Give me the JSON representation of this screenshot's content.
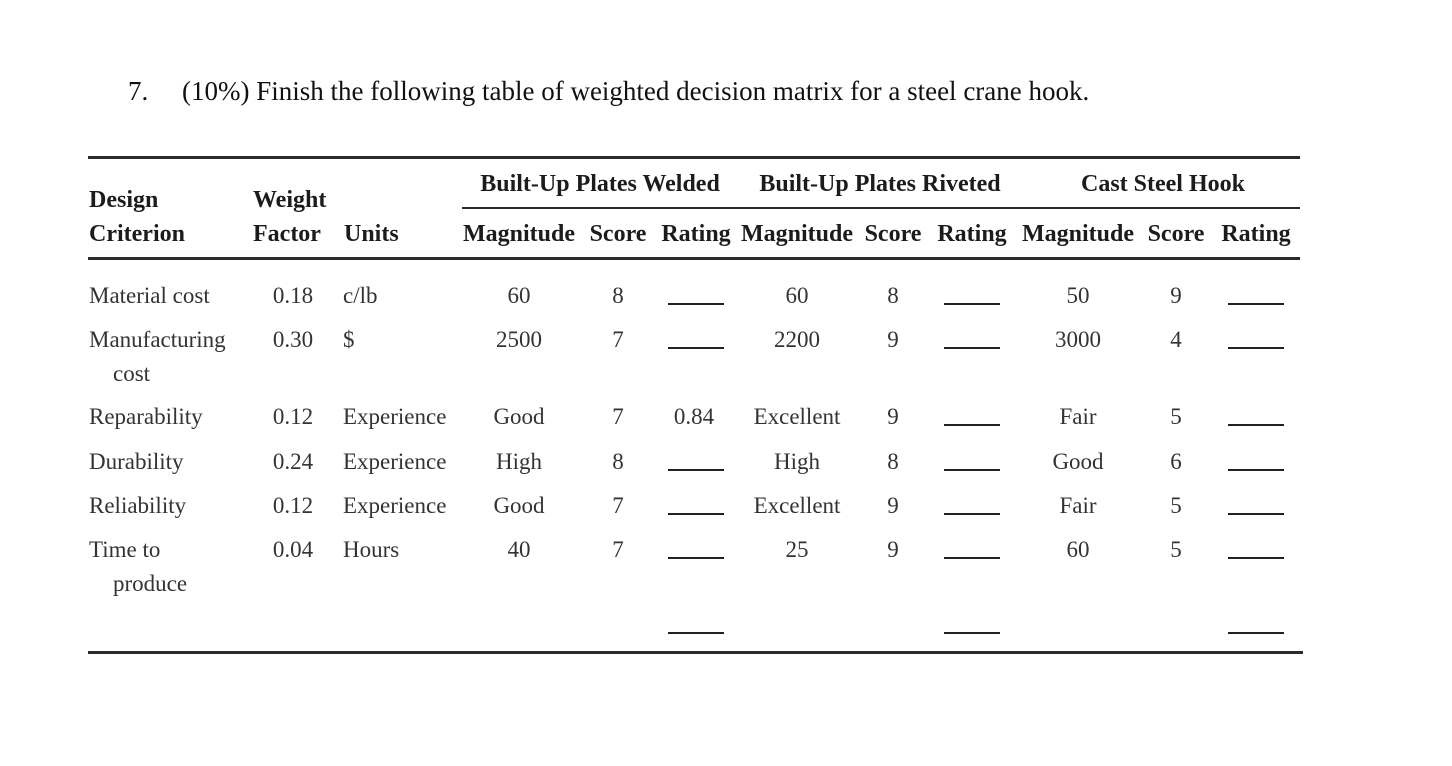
{
  "question": {
    "number": "7.",
    "text": "(10%) Finish the following table of weighted decision matrix for a steel crane hook."
  },
  "table": {
    "headers": {
      "design": "Design",
      "criterion": "Criterion",
      "weight": "Weight",
      "factor": "Factor",
      "units": "Units",
      "groups": [
        "Built-Up Plates Welded",
        "Built-Up Plates Riveted",
        "Cast Steel Hook"
      ],
      "magnitude": "Magnitude",
      "score": "Score",
      "rating": "Rating"
    },
    "rows": [
      {
        "criterion": [
          "Material cost"
        ],
        "weight": "0.18",
        "units": "c/lb",
        "welded": {
          "magnitude": "60",
          "score": "8",
          "rating": ""
        },
        "riveted": {
          "magnitude": "60",
          "score": "8",
          "rating": ""
        },
        "cast": {
          "magnitude": "50",
          "score": "9",
          "rating": ""
        }
      },
      {
        "criterion": [
          "Manufacturing",
          "cost"
        ],
        "weight": "0.30",
        "units": "$",
        "welded": {
          "magnitude": "2500",
          "score": "7",
          "rating": ""
        },
        "riveted": {
          "magnitude": "2200",
          "score": "9",
          "rating": ""
        },
        "cast": {
          "magnitude": "3000",
          "score": "4",
          "rating": ""
        }
      },
      {
        "criterion": [
          "Reparability"
        ],
        "weight": "0.12",
        "units": "Experience",
        "welded": {
          "magnitude": "Good",
          "score": "7",
          "rating": "0.84"
        },
        "riveted": {
          "magnitude": "Excellent",
          "score": "9",
          "rating": ""
        },
        "cast": {
          "magnitude": "Fair",
          "score": "5",
          "rating": ""
        }
      },
      {
        "criterion": [
          "Durability"
        ],
        "weight": "0.24",
        "units": "Experience",
        "welded": {
          "magnitude": "High",
          "score": "8",
          "rating": ""
        },
        "riveted": {
          "magnitude": "High",
          "score": "8",
          "rating": ""
        },
        "cast": {
          "magnitude": "Good",
          "score": "6",
          "rating": ""
        }
      },
      {
        "criterion": [
          "Reliability"
        ],
        "weight": "0.12",
        "units": "Experience",
        "welded": {
          "magnitude": "Good",
          "score": "7",
          "rating": ""
        },
        "riveted": {
          "magnitude": "Excellent",
          "score": "9",
          "rating": ""
        },
        "cast": {
          "magnitude": "Fair",
          "score": "5",
          "rating": ""
        }
      },
      {
        "criterion": [
          "Time to",
          "produce"
        ],
        "weight": "0.04",
        "units": "Hours",
        "welded": {
          "magnitude": "40",
          "score": "7",
          "rating": ""
        },
        "riveted": {
          "magnitude": "25",
          "score": "9",
          "rating": ""
        },
        "cast": {
          "magnitude": "60",
          "score": "5",
          "rating": ""
        }
      }
    ],
    "totals": {
      "welded": "",
      "riveted": "",
      "cast": ""
    }
  }
}
